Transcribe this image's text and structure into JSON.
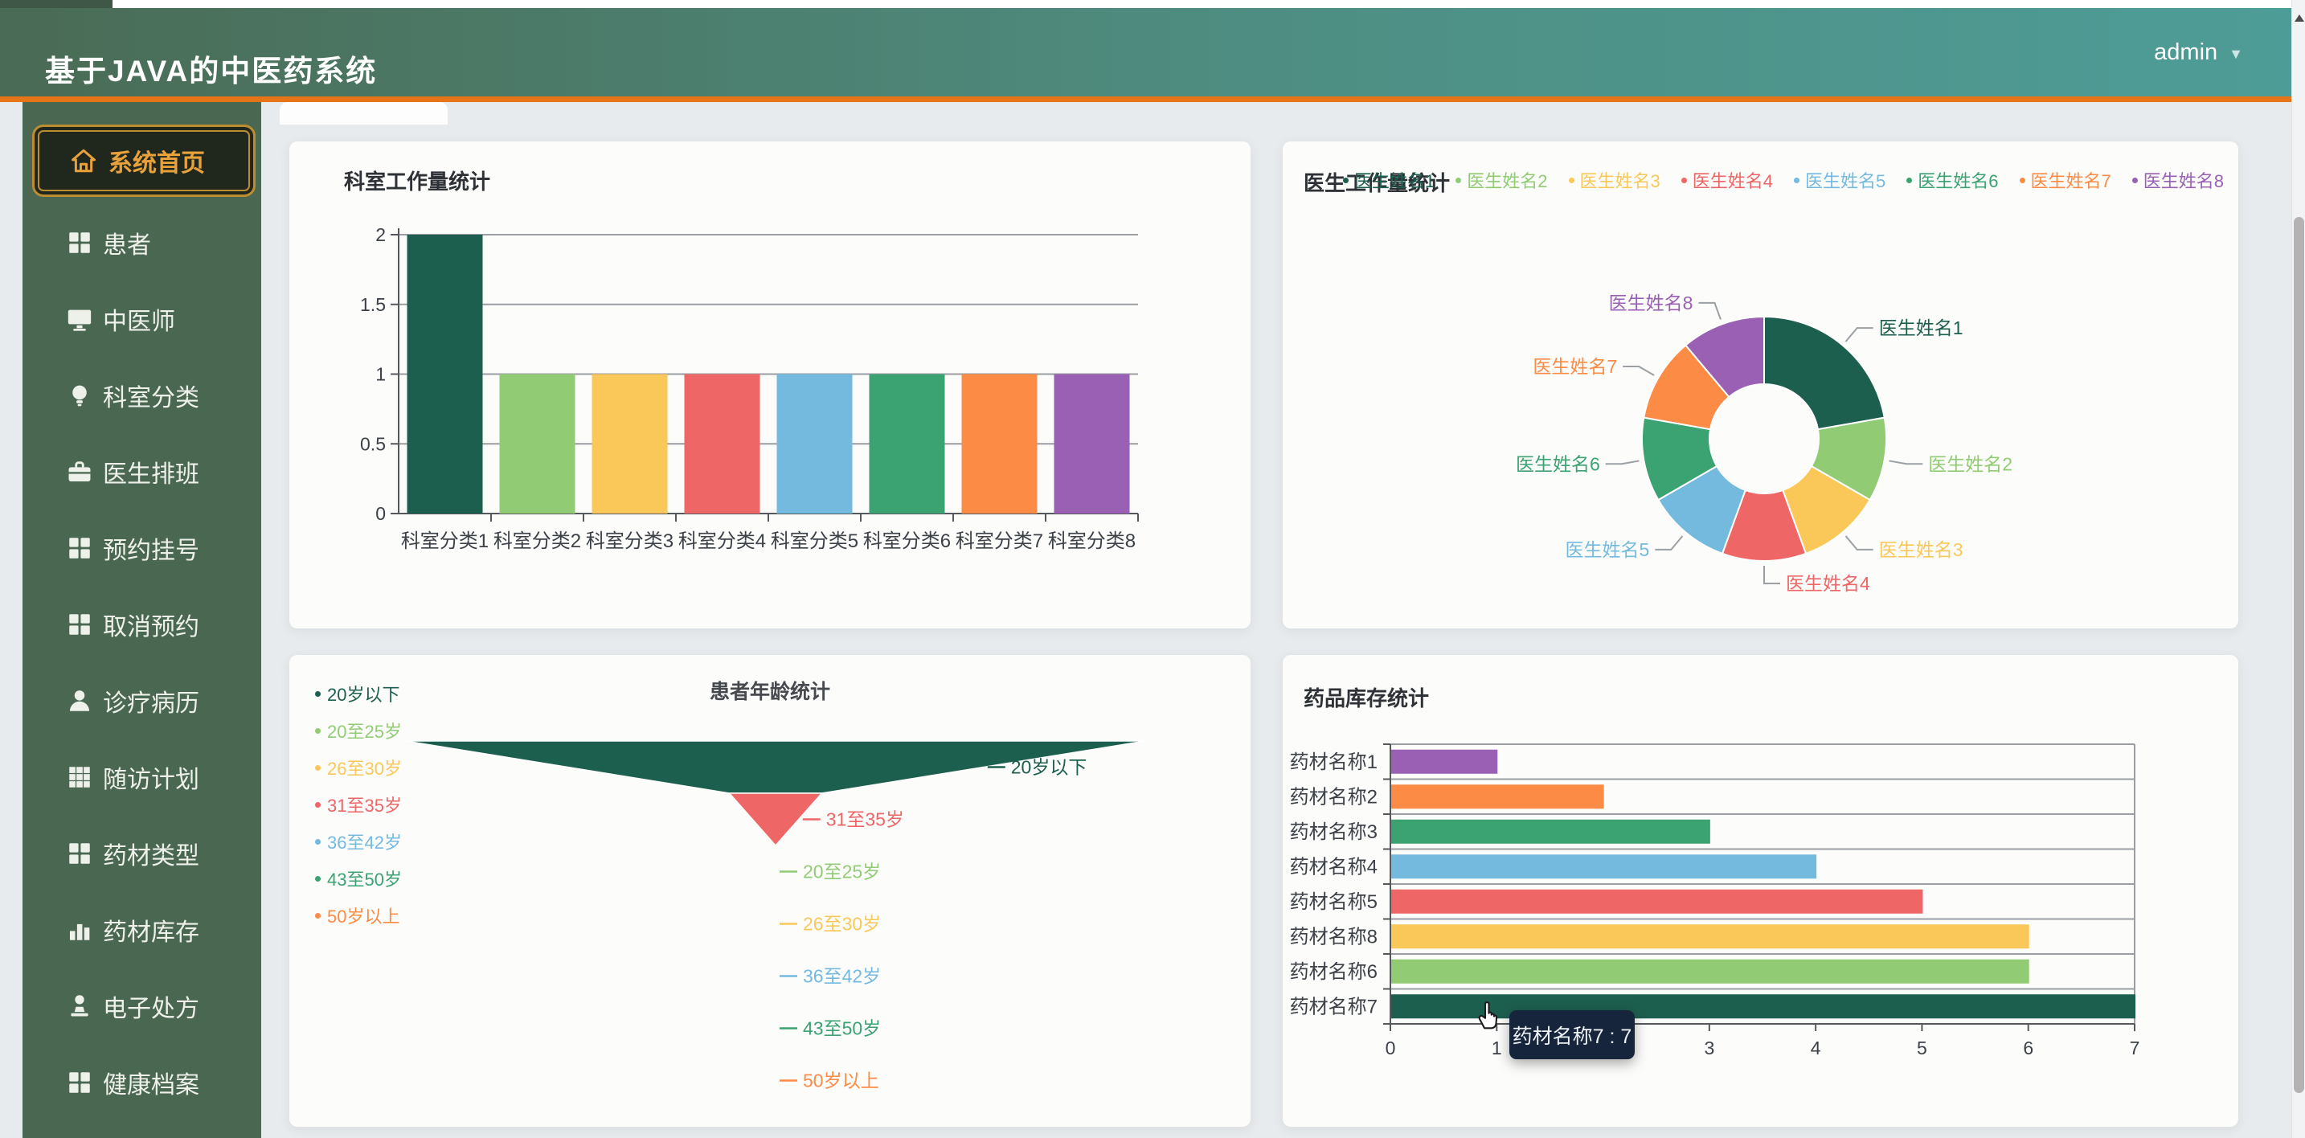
{
  "app": {
    "title": "基于JAVA的中医药系统"
  },
  "header": {
    "user": {
      "name": "admin",
      "caret": "▼"
    }
  },
  "colors": {
    "palette": [
      "#1d5f4f",
      "#91cc75",
      "#fac858",
      "#ee6666",
      "#74badf",
      "#3ba272",
      "#fb8b45",
      "#9a60b4"
    ],
    "accent_orange": "#e87418",
    "sidebar_bg": "#4a6752",
    "active_item_text": "#e9a23b",
    "tooltip_bg": "#16253b",
    "grid_line": "#9a9ea2",
    "axis_line": "#55595d",
    "axis_text": "#3c4148",
    "leader_line": "#9aa0a4"
  },
  "sidebar": {
    "items": [
      {
        "label": "系统首页",
        "icon": "home-icon",
        "active": true
      },
      {
        "label": "患者",
        "icon": "grid-icon"
      },
      {
        "label": "中医师",
        "icon": "monitor-icon"
      },
      {
        "label": "科室分类",
        "icon": "bulb-icon"
      },
      {
        "label": "医生排班",
        "icon": "briefcase-icon"
      },
      {
        "label": "预约挂号",
        "icon": "grid-icon"
      },
      {
        "label": "取消预约",
        "icon": "grid-icon"
      },
      {
        "label": "诊疗病历",
        "icon": "person-icon"
      },
      {
        "label": "随访计划",
        "icon": "table-icon"
      },
      {
        "label": "药材类型",
        "icon": "grid-icon"
      },
      {
        "label": "药材库存",
        "icon": "bar-chart-icon"
      },
      {
        "label": "电子处方",
        "icon": "stamp-icon"
      },
      {
        "label": "健康档案",
        "icon": "grid-icon"
      }
    ]
  },
  "panels": [
    {
      "title": "科室工作量统计"
    },
    {
      "title": "医生工作量统计"
    },
    {
      "title": "患者年龄统计"
    },
    {
      "title": "药品库存统计"
    }
  ],
  "chart_data": [
    {
      "type": "bar",
      "title": "科室工作量统计",
      "categories": [
        "科室分类1",
        "科室分类2",
        "科室分类3",
        "科室分类4",
        "科室分类5",
        "科室分类6",
        "科室分类7",
        "科室分类8"
      ],
      "values": [
        2,
        1,
        1,
        1,
        1,
        1,
        1,
        1
      ],
      "color_index": [
        0,
        1,
        2,
        3,
        4,
        5,
        6,
        7
      ],
      "yticks": [
        0,
        0.5,
        1,
        1.5,
        2
      ],
      "ylim": [
        0,
        2
      ],
      "grid": true,
      "legend_position": "none"
    },
    {
      "type": "pie",
      "title": "医生工作量统计",
      "labels": [
        "医生姓名1",
        "医生姓名2",
        "医生姓名3",
        "医生姓名4",
        "医生姓名5",
        "医生姓名6",
        "医生姓名7",
        "医生姓名8"
      ],
      "values": [
        2,
        1,
        1,
        1,
        1,
        1,
        1,
        1
      ],
      "color_index": [
        0,
        1,
        2,
        3,
        4,
        5,
        6,
        7
      ],
      "donut": true,
      "legend_position": "top-right"
    },
    {
      "type": "funnel",
      "title": "患者年龄统计",
      "labels": [
        "20岁以下",
        "31至35岁",
        "20至25岁",
        "26至30岁",
        "36至42岁",
        "43至50岁",
        "50岁以上"
      ],
      "values": [
        8,
        1,
        0,
        0,
        0,
        0,
        0
      ],
      "color_index": [
        0,
        3,
        1,
        2,
        4,
        5,
        6
      ],
      "legend_order": [
        "20岁以下",
        "20至25岁",
        "26至30岁",
        "31至35岁",
        "36至42岁",
        "43至50岁",
        "50岁以上"
      ],
      "legend_color_index": [
        0,
        1,
        2,
        3,
        4,
        5,
        6
      ],
      "legend_position": "left"
    },
    {
      "type": "bar-horizontal",
      "title": "药品库存统计",
      "categories": [
        "药材名称1",
        "药材名称2",
        "药材名称3",
        "药材名称4",
        "药材名称5",
        "药材名称8",
        "药材名称6",
        "药材名称7"
      ],
      "values": [
        1,
        2,
        3,
        4,
        5,
        6,
        6,
        7
      ],
      "color_index": [
        7,
        6,
        5,
        4,
        3,
        2,
        1,
        0
      ],
      "xticks": [
        0,
        1,
        2,
        3,
        4,
        5,
        6,
        7
      ],
      "xlim": [
        0,
        7
      ],
      "grid": true,
      "tooltip": {
        "label": "药材名称7",
        "value": 7,
        "text": "药材名称7 : 7"
      }
    }
  ]
}
